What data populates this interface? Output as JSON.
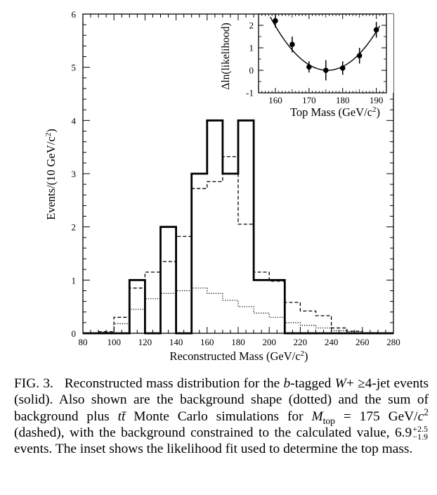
{
  "chart_data": [
    {
      "type": "histogram",
      "xlabel": "Reconstructed Mass (GeV/c",
      "xlabel_sup": "2",
      "xlabel_close": ")",
      "ylabel": "Events/(10 GeV/c",
      "ylabel_sup": "2",
      "ylabel_close": ")",
      "xlim": [
        80,
        280
      ],
      "ylim": [
        0,
        6
      ],
      "xticks": [
        80,
        100,
        120,
        140,
        160,
        180,
        200,
        220,
        240,
        260,
        280
      ],
      "yticks": [
        0,
        1,
        2,
        3,
        4,
        5,
        6
      ],
      "bin_edges": [
        80,
        90,
        100,
        110,
        120,
        130,
        140,
        150,
        160,
        170,
        180,
        190,
        200,
        210,
        220,
        230,
        240,
        250,
        260,
        270,
        280
      ],
      "series": [
        {
          "style": "solid",
          "description_in_caption": "data",
          "values": [
            0,
            0,
            0,
            1,
            0,
            2,
            0,
            3,
            4,
            3,
            4,
            1,
            1,
            0,
            0,
            0,
            0,
            0,
            0,
            0
          ]
        },
        {
          "style": "dotted",
          "description_in_caption": "background shape",
          "values": [
            0,
            0.02,
            0.18,
            0.45,
            0.65,
            0.75,
            0.8,
            0.85,
            0.75,
            0.62,
            0.5,
            0.38,
            0.3,
            0.2,
            0.15,
            0.1,
            0.05,
            0.03,
            0.01,
            0
          ]
        },
        {
          "style": "dashed",
          "description_in_caption": "background plus ttbar MC",
          "values": [
            0,
            0.03,
            0.3,
            0.85,
            1.15,
            1.35,
            1.82,
            2.72,
            2.85,
            3.32,
            2.05,
            1.15,
            0.98,
            0.58,
            0.42,
            0.33,
            0.1,
            0.04,
            0.01,
            0
          ]
        }
      ]
    },
    {
      "type": "scatter",
      "inset": true,
      "xlabel": "Top Mass (GeV/c",
      "xlabel_sup": "2",
      "xlabel_close": ")",
      "ylabel": "Δln(likelihood)",
      "xlim": [
        155,
        193
      ],
      "ylim": [
        -1,
        2.5
      ],
      "xticks": [
        160,
        170,
        180,
        190
      ],
      "yticks": [
        -1,
        0,
        1,
        2
      ],
      "points": [
        {
          "x": 160,
          "y": 2.2,
          "err": 0.3
        },
        {
          "x": 165,
          "y": 1.15,
          "err": 0.35
        },
        {
          "x": 170,
          "y": 0.15,
          "err": 0.25
        },
        {
          "x": 175,
          "y": 0.0,
          "err": 0.45
        },
        {
          "x": 180,
          "y": 0.1,
          "err": 0.3
        },
        {
          "x": 185,
          "y": 0.65,
          "err": 0.35
        },
        {
          "x": 190,
          "y": 1.8,
          "err": 0.35
        }
      ],
      "fit": {
        "type": "parabola",
        "x0": 175.5,
        "ymin": 0.0,
        "curvature": 0.0082
      }
    }
  ],
  "caption": {
    "label": "FIG. 3.",
    "t1": "Reconstructed mass distribution for the ",
    "b": "b",
    "t2": "-tagged ",
    "W": "W",
    "t3": "+ ≥4-jet events (solid). Also shown are the background shape (dotted) and the sum of background plus ",
    "ttbar": "tt̄",
    "t4": " Monte Carlo simulations for ",
    "M": "M",
    "Msub": "top",
    "t5": " = 175 GeV/",
    "c": "c",
    "csup": "2",
    "t6": " (dashed), with the background constrained to the calculated value, 6.9",
    "sup": "+2.5",
    "sub": "−1.9",
    "t7": " events. The inset shows the likelihood fit used to determine the top mass."
  }
}
